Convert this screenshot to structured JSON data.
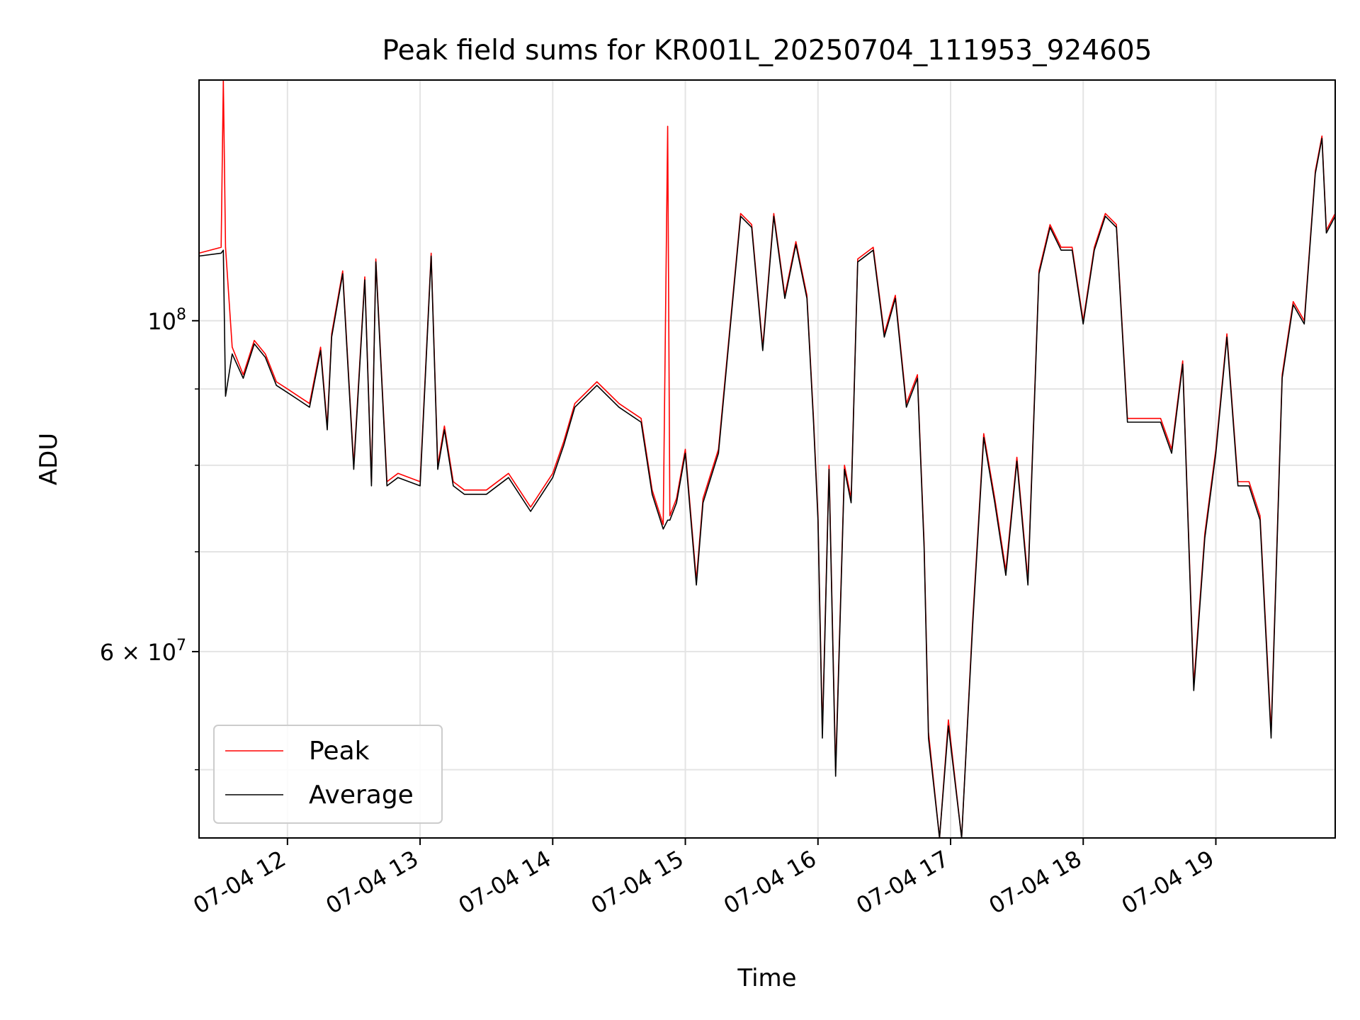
{
  "chart_data": {
    "type": "line",
    "title": "Peak field sums for KR001L_20250704_111953_924605",
    "xlabel": "Time",
    "ylabel": "ADU",
    "yscale": "log",
    "grid": true,
    "legend_position": "lower-left",
    "xlim": [
      "2025-07-04 11:20",
      "2025-07-04 19:54"
    ],
    "ylim": [
      45000000,
      145000000
    ],
    "x_ticks": [
      {
        "value": "2025-07-04 12:00",
        "label": "07-04 12"
      },
      {
        "value": "2025-07-04 13:00",
        "label": "07-04 13"
      },
      {
        "value": "2025-07-04 14:00",
        "label": "07-04 14"
      },
      {
        "value": "2025-07-04 15:00",
        "label": "07-04 15"
      },
      {
        "value": "2025-07-04 16:00",
        "label": "07-04 16"
      },
      {
        "value": "2025-07-04 17:00",
        "label": "07-04 17"
      },
      {
        "value": "2025-07-04 18:00",
        "label": "07-04 18"
      },
      {
        "value": "2025-07-04 19:00",
        "label": "07-04 19"
      }
    ],
    "y_ticks_major": [
      {
        "value": 60000000,
        "mantissa": "6",
        "exponent": "7",
        "base": "10"
      },
      {
        "value": 100000000,
        "mantissa": "",
        "exponent": "8",
        "base": "10"
      }
    ],
    "y_ticks_minor": [
      50000000,
      70000000,
      80000000,
      90000000
    ],
    "series": [
      {
        "name": "Peak",
        "color": "#ff0000",
        "x": [
          "2025-07-04 11:20",
          "2025-07-04 11:30",
          "2025-07-04 11:31",
          "2025-07-04 11:32",
          "2025-07-04 11:35",
          "2025-07-04 11:40",
          "2025-07-04 11:45",
          "2025-07-04 11:50",
          "2025-07-04 11:55",
          "2025-07-04 12:00",
          "2025-07-04 12:05",
          "2025-07-04 12:10",
          "2025-07-04 12:15",
          "2025-07-04 12:18",
          "2025-07-04 12:20",
          "2025-07-04 12:25",
          "2025-07-04 12:30",
          "2025-07-04 12:35",
          "2025-07-04 12:38",
          "2025-07-04 12:40",
          "2025-07-04 12:45",
          "2025-07-04 12:50",
          "2025-07-04 13:00",
          "2025-07-04 13:05",
          "2025-07-04 13:08",
          "2025-07-04 13:11",
          "2025-07-04 13:15",
          "2025-07-04 13:20",
          "2025-07-04 13:30",
          "2025-07-04 13:40",
          "2025-07-04 13:50",
          "2025-07-04 14:00",
          "2025-07-04 14:05",
          "2025-07-04 14:10",
          "2025-07-04 14:20",
          "2025-07-04 14:30",
          "2025-07-04 14:40",
          "2025-07-04 14:45",
          "2025-07-04 14:50",
          "2025-07-04 14:52",
          "2025-07-04 14:53",
          "2025-07-04 14:56",
          "2025-07-04 15:00",
          "2025-07-04 15:05",
          "2025-07-04 15:08",
          "2025-07-04 15:15",
          "2025-07-04 15:25",
          "2025-07-04 15:30",
          "2025-07-04 15:35",
          "2025-07-04 15:40",
          "2025-07-04 15:45",
          "2025-07-04 15:50",
          "2025-07-04 15:55",
          "2025-07-04 15:58",
          "2025-07-04 16:00",
          "2025-07-04 16:02",
          "2025-07-04 16:05",
          "2025-07-04 16:08",
          "2025-07-04 16:12",
          "2025-07-04 16:15",
          "2025-07-04 16:18",
          "2025-07-04 16:25",
          "2025-07-04 16:30",
          "2025-07-04 16:35",
          "2025-07-04 16:40",
          "2025-07-04 16:45",
          "2025-07-04 16:48",
          "2025-07-04 16:50",
          "2025-07-04 16:55",
          "2025-07-04 16:59",
          "2025-07-04 17:05",
          "2025-07-04 17:10",
          "2025-07-04 17:15",
          "2025-07-04 17:20",
          "2025-07-04 17:25",
          "2025-07-04 17:30",
          "2025-07-04 17:35",
          "2025-07-04 17:40",
          "2025-07-04 17:45",
          "2025-07-04 17:50",
          "2025-07-04 17:55",
          "2025-07-04 18:00",
          "2025-07-04 18:05",
          "2025-07-04 18:10",
          "2025-07-04 18:15",
          "2025-07-04 18:20",
          "2025-07-04 18:30",
          "2025-07-04 18:35",
          "2025-07-04 18:40",
          "2025-07-04 18:45",
          "2025-07-04 18:50",
          "2025-07-04 18:55",
          "2025-07-04 19:00",
          "2025-07-04 19:05",
          "2025-07-04 19:10",
          "2025-07-04 19:15",
          "2025-07-04 19:20",
          "2025-07-04 19:25",
          "2025-07-04 19:30",
          "2025-07-04 19:35",
          "2025-07-04 19:40",
          "2025-07-04 19:45",
          "2025-07-04 19:48",
          "2025-07-04 19:50",
          "2025-07-04 19:54"
        ],
        "values": [
          111000000,
          112000000,
          145000000,
          112000000,
          96000000,
          92000000,
          97000000,
          95000000,
          91000000,
          90000000,
          89000000,
          88000000,
          96000000,
          85000000,
          98000000,
          108000000,
          80000000,
          107000000,
          78000000,
          110000000,
          78000000,
          79000000,
          78000000,
          111000000,
          80000000,
          85000000,
          78000000,
          77000000,
          77000000,
          79000000,
          75000000,
          79000000,
          83000000,
          88000000,
          91000000,
          88000000,
          86000000,
          77000000,
          73000000,
          135000000,
          74000000,
          76000000,
          82000000,
          67000000,
          76000000,
          82000000,
          118000000,
          116000000,
          96000000,
          118000000,
          104000000,
          113000000,
          104000000,
          86000000,
          74000000,
          53000000,
          80000000,
          50000000,
          80000000,
          76000000,
          110000000,
          112000000,
          98000000,
          104000000,
          88000000,
          92000000,
          71000000,
          53000000,
          45000000,
          54000000,
          45000000,
          63000000,
          84000000,
          76000000,
          68000000,
          81000000,
          67000000,
          108000000,
          116000000,
          112000000,
          112000000,
          100000000,
          112000000,
          118000000,
          116000000,
          86000000,
          86000000,
          86000000,
          82000000,
          94000000,
          57000000,
          72000000,
          82000000,
          98000000,
          78000000,
          78000000,
          74000000,
          53000000,
          92000000,
          103000000,
          100000000,
          126000000,
          133000000,
          115000000,
          118000000
        ]
      },
      {
        "name": "Average",
        "color": "#000000",
        "x": [
          "2025-07-04 11:20",
          "2025-07-04 11:30",
          "2025-07-04 11:31",
          "2025-07-04 11:32",
          "2025-07-04 11:35",
          "2025-07-04 11:40",
          "2025-07-04 11:45",
          "2025-07-04 11:50",
          "2025-07-04 11:55",
          "2025-07-04 12:00",
          "2025-07-04 12:05",
          "2025-07-04 12:10",
          "2025-07-04 12:15",
          "2025-07-04 12:18",
          "2025-07-04 12:20",
          "2025-07-04 12:25",
          "2025-07-04 12:30",
          "2025-07-04 12:35",
          "2025-07-04 12:38",
          "2025-07-04 12:40",
          "2025-07-04 12:45",
          "2025-07-04 12:50",
          "2025-07-04 13:00",
          "2025-07-04 13:05",
          "2025-07-04 13:08",
          "2025-07-04 13:11",
          "2025-07-04 13:15",
          "2025-07-04 13:20",
          "2025-07-04 13:30",
          "2025-07-04 13:40",
          "2025-07-04 13:50",
          "2025-07-04 14:00",
          "2025-07-04 14:05",
          "2025-07-04 14:10",
          "2025-07-04 14:20",
          "2025-07-04 14:30",
          "2025-07-04 14:40",
          "2025-07-04 14:45",
          "2025-07-04 14:50",
          "2025-07-04 14:52",
          "2025-07-04 14:53",
          "2025-07-04 14:56",
          "2025-07-04 15:00",
          "2025-07-04 15:05",
          "2025-07-04 15:08",
          "2025-07-04 15:15",
          "2025-07-04 15:25",
          "2025-07-04 15:30",
          "2025-07-04 15:35",
          "2025-07-04 15:40",
          "2025-07-04 15:45",
          "2025-07-04 15:50",
          "2025-07-04 15:55",
          "2025-07-04 15:58",
          "2025-07-04 16:00",
          "2025-07-04 16:02",
          "2025-07-04 16:05",
          "2025-07-04 16:08",
          "2025-07-04 16:12",
          "2025-07-04 16:15",
          "2025-07-04 16:18",
          "2025-07-04 16:25",
          "2025-07-04 16:30",
          "2025-07-04 16:35",
          "2025-07-04 16:40",
          "2025-07-04 16:45",
          "2025-07-04 16:48",
          "2025-07-04 16:50",
          "2025-07-04 16:55",
          "2025-07-04 16:59",
          "2025-07-04 17:05",
          "2025-07-04 17:10",
          "2025-07-04 17:15",
          "2025-07-04 17:20",
          "2025-07-04 17:25",
          "2025-07-04 17:30",
          "2025-07-04 17:35",
          "2025-07-04 17:40",
          "2025-07-04 17:45",
          "2025-07-04 17:50",
          "2025-07-04 17:55",
          "2025-07-04 18:00",
          "2025-07-04 18:05",
          "2025-07-04 18:10",
          "2025-07-04 18:15",
          "2025-07-04 18:20",
          "2025-07-04 18:30",
          "2025-07-04 18:35",
          "2025-07-04 18:40",
          "2025-07-04 18:45",
          "2025-07-04 18:50",
          "2025-07-04 18:55",
          "2025-07-04 19:00",
          "2025-07-04 19:05",
          "2025-07-04 19:10",
          "2025-07-04 19:15",
          "2025-07-04 19:20",
          "2025-07-04 19:25",
          "2025-07-04 19:30",
          "2025-07-04 19:35",
          "2025-07-04 19:40",
          "2025-07-04 19:45",
          "2025-07-04 19:48",
          "2025-07-04 19:50",
          "2025-07-04 19:54"
        ],
        "values": [
          110500000,
          111000000,
          111500000,
          89000000,
          95000000,
          91500000,
          96500000,
          94500000,
          90500000,
          89500000,
          88500000,
          87500000,
          95500000,
          84500000,
          97500000,
          107500000,
          79500000,
          106500000,
          77500000,
          109500000,
          77500000,
          78500000,
          77500000,
          110500000,
          79500000,
          84500000,
          77500000,
          76500000,
          76500000,
          78500000,
          74500000,
          78500000,
          82500000,
          87500000,
          90500000,
          87500000,
          85500000,
          76500000,
          72500000,
          73500000,
          73500000,
          75500000,
          81500000,
          66500000,
          75500000,
          81500000,
          117500000,
          115500000,
          95500000,
          117500000,
          103500000,
          112500000,
          103500000,
          85500000,
          73500000,
          52500000,
          79500000,
          49500000,
          79500000,
          75500000,
          109500000,
          111500000,
          97500000,
          103500000,
          87500000,
          91500000,
          70500000,
          52500000,
          45000000,
          53500000,
          45000000,
          62500000,
          83500000,
          75500000,
          67500000,
          80500000,
          66500000,
          107500000,
          115500000,
          111500000,
          111500000,
          99500000,
          111500000,
          117500000,
          115500000,
          85500000,
          85500000,
          85500000,
          81500000,
          93500000,
          56500000,
          71500000,
          81500000,
          97500000,
          77500000,
          77500000,
          73500000,
          52500000,
          91500000,
          102500000,
          99500000,
          125500000,
          132500000,
          114500000,
          117500000
        ]
      }
    ]
  }
}
